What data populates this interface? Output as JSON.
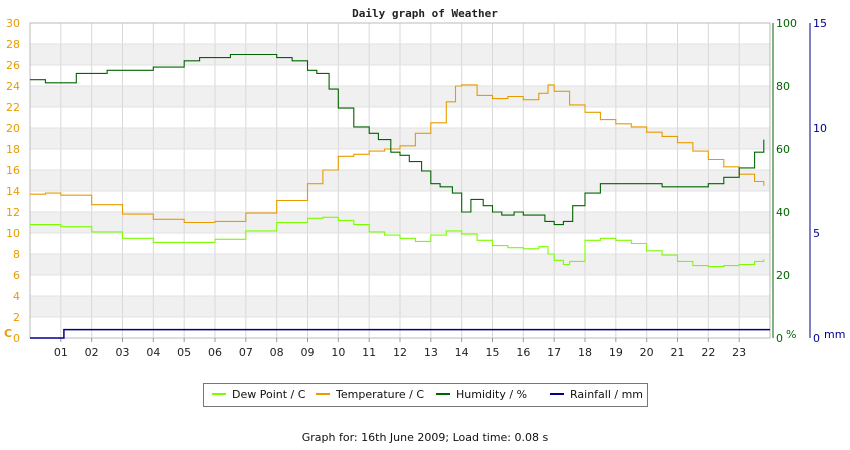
{
  "chart_data": {
    "type": "line",
    "title": "Daily graph of Weather",
    "xlabel": "",
    "x_ticks": [
      "01",
      "02",
      "03",
      "04",
      "05",
      "06",
      "07",
      "08",
      "09",
      "10",
      "11",
      "12",
      "13",
      "14",
      "15",
      "16",
      "17",
      "18",
      "19",
      "20",
      "21",
      "22",
      "23"
    ],
    "x_range": [
      0,
      24
    ],
    "y_axes": [
      {
        "id": "left",
        "unit_label": "C",
        "range": [
          0,
          30
        ],
        "ticks": [
          0,
          2,
          4,
          6,
          8,
          10,
          12,
          14,
          16,
          18,
          20,
          22,
          24,
          26,
          28,
          30
        ],
        "color": "#e89b00"
      },
      {
        "id": "mid",
        "unit_label": "%",
        "range": [
          0,
          100
        ],
        "ticks": [
          0,
          20,
          40,
          60,
          80,
          100
        ],
        "color": "#006400"
      },
      {
        "id": "right",
        "unit_label": "mm",
        "range": [
          0,
          15
        ],
        "ticks": [
          0,
          5,
          10,
          15
        ],
        "color": "#00008b"
      }
    ],
    "grid": true,
    "legend_position": "bottom",
    "series": [
      {
        "name": "Dew Point / C",
        "axis": "left",
        "color": "#7cfc00",
        "x": [
          0,
          1,
          2,
          3,
          4,
          5,
          6,
          7,
          8,
          9,
          9.5,
          10,
          10.5,
          11,
          11.5,
          12,
          12.5,
          13,
          13.5,
          14,
          14.5,
          15,
          15.5,
          16,
          16.5,
          16.8,
          17,
          17.3,
          17.5,
          18,
          18.5,
          19,
          19.5,
          20,
          20.5,
          21,
          21.5,
          22,
          22.5,
          23,
          23.5,
          23.8
        ],
        "y": [
          10.8,
          10.6,
          10.1,
          9.5,
          9.1,
          9.1,
          9.4,
          10.2,
          11.0,
          11.4,
          11.5,
          11.2,
          10.8,
          10.1,
          9.8,
          9.5,
          9.2,
          9.8,
          10.2,
          9.9,
          9.3,
          8.8,
          8.6,
          8.5,
          8.7,
          8.0,
          7.4,
          7.0,
          7.3,
          9.3,
          9.5,
          9.3,
          9.0,
          8.3,
          7.9,
          7.3,
          6.9,
          6.8,
          6.9,
          7.0,
          7.3,
          7.5
        ]
      },
      {
        "name": "Temperature / C",
        "axis": "left",
        "color": "#e89b00",
        "x": [
          0,
          0.5,
          1,
          2,
          3,
          4,
          5,
          6,
          7,
          8,
          9,
          9.5,
          10,
          10.5,
          11,
          11.5,
          12,
          12.5,
          13,
          13.5,
          13.8,
          14,
          14.5,
          15,
          15.5,
          16,
          16.5,
          16.8,
          17,
          17.5,
          18,
          18.5,
          19,
          19.5,
          20,
          20.5,
          21,
          21.5,
          22,
          22.5,
          23,
          23.5,
          23.8
        ],
        "y": [
          13.7,
          13.8,
          13.6,
          12.7,
          11.8,
          11.3,
          11.0,
          11.1,
          11.9,
          13.1,
          14.7,
          16.0,
          17.3,
          17.5,
          17.8,
          18.0,
          18.3,
          19.5,
          20.5,
          22.5,
          24.0,
          24.1,
          23.1,
          22.8,
          23.0,
          22.7,
          23.3,
          24.1,
          23.5,
          22.2,
          21.5,
          20.8,
          20.4,
          20.1,
          19.6,
          19.2,
          18.6,
          17.8,
          17.0,
          16.3,
          15.6,
          14.9,
          14.5
        ]
      },
      {
        "name": "Humidity / %",
        "axis": "mid",
        "color": "#006400",
        "x": [
          0,
          0.5,
          1,
          1.5,
          2,
          2.5,
          3,
          3.5,
          4,
          4.5,
          5,
          5.5,
          6,
          6.5,
          7,
          7.5,
          8,
          8.5,
          9,
          9.3,
          9.7,
          10,
          10.5,
          11,
          11.3,
          11.7,
          12,
          12.3,
          12.7,
          13,
          13.3,
          13.7,
          14,
          14.3,
          14.7,
          15,
          15.3,
          15.7,
          16,
          16.3,
          16.7,
          17,
          17.3,
          17.6,
          18,
          18.5,
          19,
          19.5,
          20,
          20.5,
          21,
          21.5,
          22,
          22.5,
          23,
          23.5,
          23.8
        ],
        "y": [
          82,
          81,
          81,
          84,
          84,
          85,
          85,
          85,
          86,
          86,
          88,
          89,
          89,
          90,
          90,
          90,
          89,
          88,
          85,
          84,
          79,
          73,
          67,
          65,
          63,
          59,
          58,
          56,
          53,
          49,
          48,
          46,
          40,
          44,
          42,
          40,
          39,
          40,
          39,
          39,
          37,
          36,
          37,
          42,
          46,
          49,
          49,
          49,
          49,
          48,
          48,
          48,
          49,
          51,
          54,
          59,
          63
        ]
      },
      {
        "name": "Rainfall / mm",
        "axis": "right",
        "color": "#00008b",
        "x": [
          0,
          1.1,
          1.1,
          24
        ],
        "y": [
          0,
          0,
          0.4,
          0.4
        ]
      }
    ]
  },
  "footer_text": "Graph for: 16th June 2009; Load time: 0.08 s"
}
